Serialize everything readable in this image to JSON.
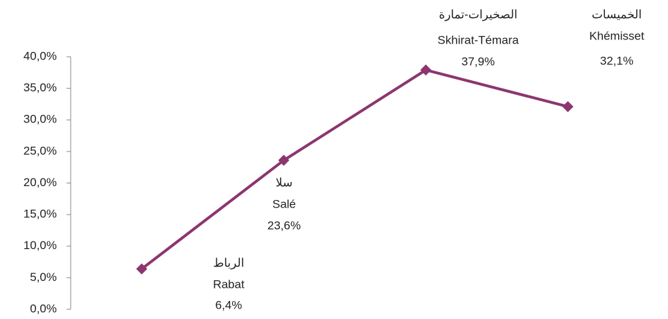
{
  "chart_data": {
    "type": "line",
    "categories": [
      "Rabat",
      "Salé",
      "Skhirat-Témara",
      "Khémisset"
    ],
    "category_labels_ar": [
      "الرباط",
      "سلا",
      "الصخيرات-تمارة",
      "الخميسات"
    ],
    "values": [
      6.4,
      23.6,
      37.9,
      32.1
    ],
    "value_labels": [
      "6,4%",
      "23,6%",
      "37,9%",
      "32,1%"
    ],
    "color": "#8c3570",
    "ylim": [
      0,
      40
    ],
    "yticks": [
      {
        "value": 0,
        "label": "0,0%"
      },
      {
        "value": 5,
        "label": "5,0%"
      },
      {
        "value": 10,
        "label": "10,0%"
      },
      {
        "value": 15,
        "label": "15,0%"
      },
      {
        "value": 20,
        "label": "20,0%"
      },
      {
        "value": 25,
        "label": "25,0%"
      },
      {
        "value": 30,
        "label": "30,0%"
      },
      {
        "value": 35,
        "label": "35,0%"
      },
      {
        "value": 40,
        "label": "40,0%"
      }
    ],
    "grid": false
  }
}
